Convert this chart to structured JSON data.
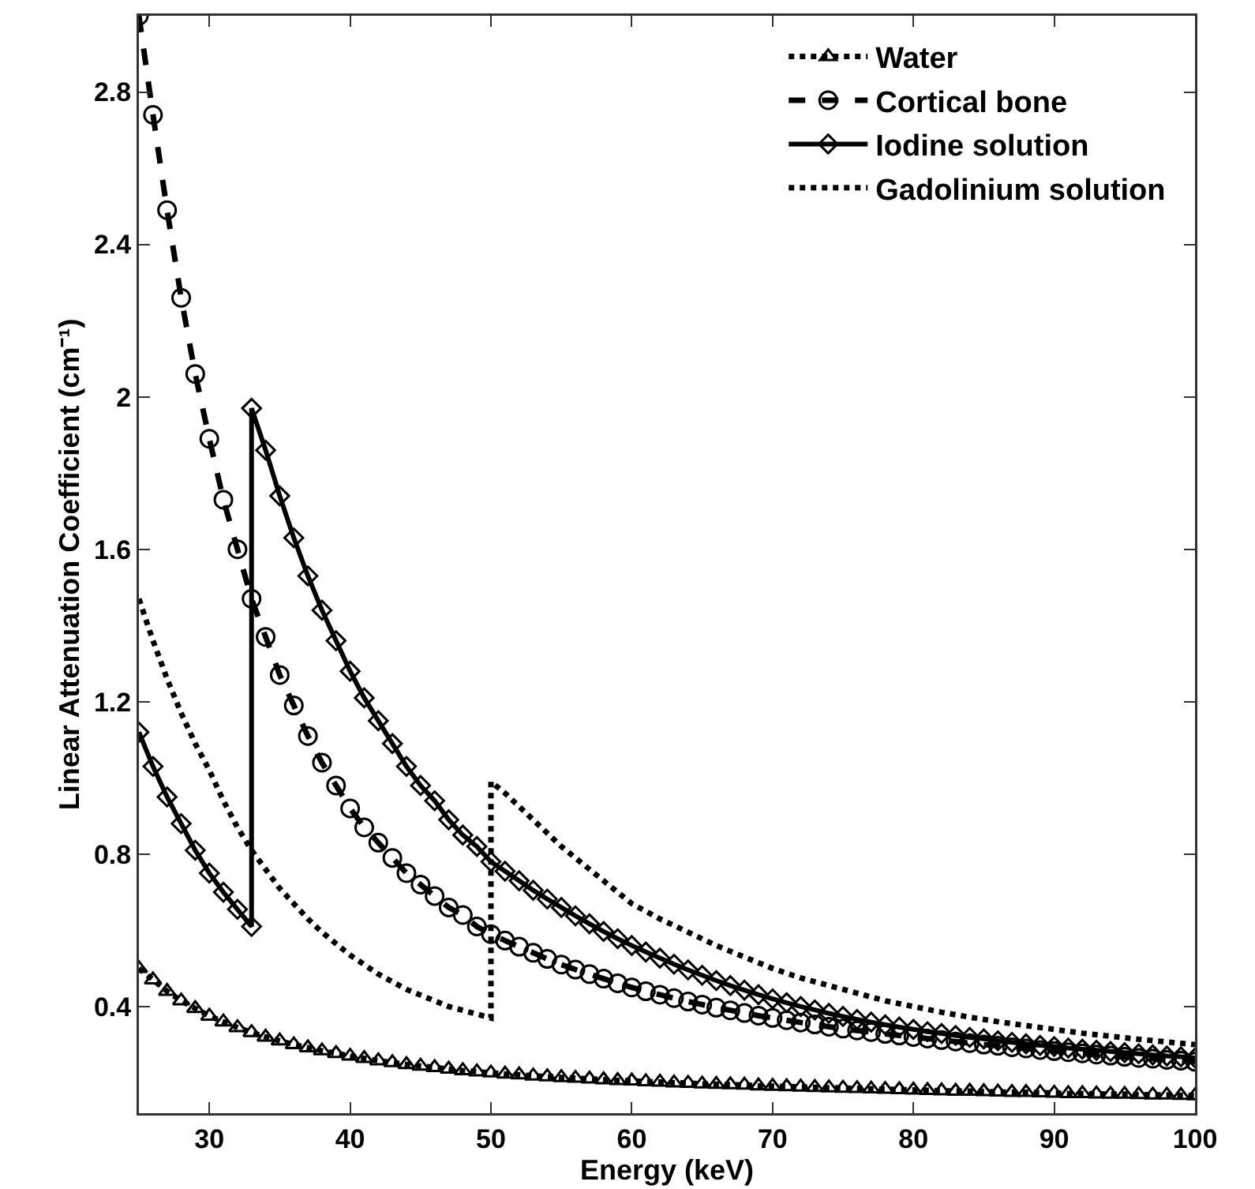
{
  "chart_data": {
    "type": "line",
    "xlabel": "Energy (keV)",
    "ylabel": "Linear Attenuation Coefficient (cm⁻¹)",
    "xlim": [
      25,
      100
    ],
    "xticks": [
      30,
      40,
      50,
      60,
      70,
      80,
      90,
      100
    ],
    "ylim": [
      0.12,
      3
    ],
    "yticks": [
      0.4,
      0.8,
      1.2,
      1.6,
      2,
      2.4,
      2.8
    ],
    "grid": false,
    "legend": "top right",
    "series": [
      {
        "name": "Water",
        "color": "#000000",
        "marker": "triangle",
        "line_style": "dotted",
        "x": [
          25,
          26,
          27,
          28,
          29,
          30,
          31,
          32,
          33,
          34,
          35,
          36,
          37,
          38,
          39,
          40,
          41,
          42,
          43,
          44,
          45,
          46,
          47,
          48,
          49,
          50,
          51,
          52,
          53,
          54,
          55,
          56,
          57,
          58,
          59,
          60,
          61,
          62,
          63,
          64,
          65,
          66,
          67,
          68,
          69,
          70,
          71,
          72,
          73,
          74,
          75,
          76,
          77,
          78,
          79,
          80,
          81,
          82,
          83,
          84,
          85,
          86,
          87,
          88,
          89,
          90,
          91,
          92,
          93,
          94,
          95,
          96,
          97,
          98,
          99,
          100
        ],
        "values": [
          0.5,
          0.47,
          0.44,
          0.415,
          0.395,
          0.375,
          0.36,
          0.345,
          0.332,
          0.32,
          0.31,
          0.3,
          0.292,
          0.284,
          0.277,
          0.27,
          0.264,
          0.258,
          0.253,
          0.248,
          0.244,
          0.24,
          0.236,
          0.232,
          0.229,
          0.226,
          0.223,
          0.221,
          0.218,
          0.216,
          0.214,
          0.212,
          0.21,
          0.208,
          0.206,
          0.205,
          0.203,
          0.202,
          0.2,
          0.199,
          0.197,
          0.196,
          0.195,
          0.194,
          0.192,
          0.191,
          0.19,
          0.189,
          0.188,
          0.187,
          0.186,
          0.185,
          0.184,
          0.183,
          0.182,
          0.181,
          0.18,
          0.179,
          0.178,
          0.178,
          0.177,
          0.176,
          0.175,
          0.175,
          0.174,
          0.173,
          0.172,
          0.172,
          0.171,
          0.17,
          0.17,
          0.169,
          0.168,
          0.168,
          0.167,
          0.166
        ]
      },
      {
        "name": "Cortical bone",
        "color": "#000000",
        "marker": "circle",
        "line_style": "dashed",
        "x": [
          25,
          26,
          27,
          28,
          29,
          30,
          31,
          32,
          33,
          34,
          35,
          36,
          37,
          38,
          39,
          40,
          41,
          42,
          43,
          44,
          45,
          46,
          47,
          48,
          49,
          50,
          51,
          52,
          53,
          54,
          55,
          56,
          57,
          58,
          59,
          60,
          61,
          62,
          63,
          64,
          65,
          66,
          67,
          68,
          69,
          70,
          71,
          72,
          73,
          74,
          75,
          76,
          77,
          78,
          79,
          80,
          81,
          82,
          83,
          84,
          85,
          86,
          87,
          88,
          89,
          90,
          91,
          92,
          93,
          94,
          95,
          96,
          97,
          98,
          99,
          100
        ],
        "values": [
          3.0,
          2.74,
          2.49,
          2.26,
          2.06,
          1.89,
          1.73,
          1.6,
          1.47,
          1.37,
          1.27,
          1.19,
          1.11,
          1.04,
          0.98,
          0.92,
          0.87,
          0.83,
          0.79,
          0.75,
          0.72,
          0.69,
          0.66,
          0.64,
          0.61,
          0.59,
          0.573,
          0.557,
          0.541,
          0.525,
          0.51,
          0.497,
          0.485,
          0.473,
          0.461,
          0.45,
          0.44,
          0.431,
          0.422,
          0.413,
          0.405,
          0.397,
          0.39,
          0.383,
          0.376,
          0.37,
          0.364,
          0.358,
          0.353,
          0.347,
          0.342,
          0.337,
          0.333,
          0.328,
          0.324,
          0.32,
          0.316,
          0.312,
          0.308,
          0.304,
          0.3,
          0.297,
          0.293,
          0.29,
          0.286,
          0.283,
          0.28,
          0.277,
          0.274,
          0.271,
          0.268,
          0.265,
          0.263,
          0.26,
          0.258,
          0.255
        ]
      },
      {
        "name": "Iodine solution",
        "color": "#000000",
        "marker": "diamond",
        "line_style": "solid",
        "x": [
          25,
          26,
          27,
          28,
          29,
          30,
          31,
          32,
          33,
          33,
          34,
          35,
          36,
          37,
          38,
          39,
          40,
          41,
          42,
          43,
          44,
          45,
          46,
          47,
          48,
          49,
          50,
          51,
          52,
          53,
          54,
          55,
          56,
          57,
          58,
          59,
          60,
          61,
          62,
          63,
          64,
          65,
          66,
          67,
          68,
          69,
          70,
          71,
          72,
          73,
          74,
          75,
          76,
          77,
          78,
          79,
          80,
          81,
          82,
          83,
          84,
          85,
          86,
          87,
          88,
          89,
          90,
          91,
          92,
          93,
          94,
          95,
          96,
          97,
          98,
          99,
          100
        ],
        "values": [
          1.12,
          1.03,
          0.95,
          0.88,
          0.81,
          0.75,
          0.7,
          0.655,
          0.61,
          1.97,
          1.86,
          1.74,
          1.63,
          1.53,
          1.44,
          1.36,
          1.28,
          1.21,
          1.15,
          1.09,
          1.03,
          0.98,
          0.94,
          0.89,
          0.85,
          0.82,
          0.78,
          0.755,
          0.73,
          0.705,
          0.682,
          0.66,
          0.638,
          0.617,
          0.597,
          0.578,
          0.56,
          0.543,
          0.527,
          0.511,
          0.496,
          0.482,
          0.468,
          0.455,
          0.443,
          0.431,
          0.42,
          0.41,
          0.4,
          0.391,
          0.382,
          0.374,
          0.366,
          0.359,
          0.352,
          0.346,
          0.34,
          0.334,
          0.329,
          0.324,
          0.319,
          0.315,
          0.31,
          0.306,
          0.302,
          0.298,
          0.295,
          0.291,
          0.288,
          0.285,
          0.282,
          0.279,
          0.276,
          0.273,
          0.27,
          0.268,
          0.265
        ]
      },
      {
        "name": "Gadolinium solution",
        "color": "#000000",
        "marker": "none",
        "line_style": "dotted",
        "x": [
          25,
          26,
          27,
          28,
          29,
          30,
          31,
          32,
          33,
          34,
          35,
          36,
          37,
          38,
          39,
          40,
          41,
          42,
          43,
          44,
          45,
          46,
          47,
          48,
          49,
          50,
          50,
          51,
          52,
          53,
          54,
          55,
          56,
          57,
          58,
          59,
          60,
          62,
          64,
          66,
          68,
          70,
          72,
          74,
          76,
          78,
          80,
          82,
          84,
          86,
          88,
          90,
          92,
          94,
          96,
          98,
          100
        ],
        "values": [
          1.47,
          1.36,
          1.26,
          1.17,
          1.09,
          1.02,
          0.94,
          0.87,
          0.81,
          0.76,
          0.71,
          0.67,
          0.63,
          0.595,
          0.565,
          0.535,
          0.51,
          0.485,
          0.465,
          0.445,
          0.43,
          0.415,
          0.4,
          0.39,
          0.38,
          0.37,
          0.99,
          0.96,
          0.925,
          0.89,
          0.855,
          0.82,
          0.79,
          0.76,
          0.73,
          0.7,
          0.67,
          0.63,
          0.595,
          0.56,
          0.53,
          0.5,
          0.475,
          0.455,
          0.435,
          0.415,
          0.4,
          0.385,
          0.372,
          0.36,
          0.35,
          0.34,
          0.33,
          0.322,
          0.314,
          0.307,
          0.3
        ]
      }
    ]
  }
}
